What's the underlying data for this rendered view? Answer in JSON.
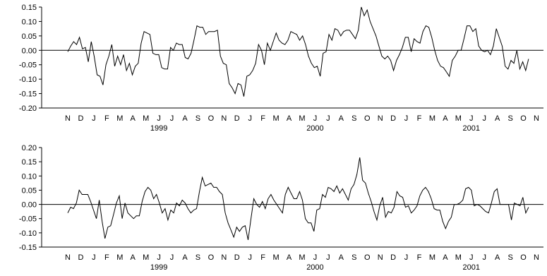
{
  "chart_data": [
    {
      "type": "line",
      "title": "",
      "xlabel": "",
      "ylabel": "",
      "ylim": [
        -0.2,
        0.15
      ],
      "yticks": [
        "0.15",
        "0.10",
        "0.05",
        "0.00",
        "-0.05",
        "-0.10",
        "-0.15",
        "-0.20"
      ],
      "ytick_values": [
        0.15,
        0.1,
        0.05,
        0.0,
        -0.05,
        -0.1,
        -0.15,
        -0.2
      ],
      "months": [
        "N",
        "D",
        "J",
        "F",
        "M",
        "A",
        "M",
        "J",
        "J",
        "A",
        "S",
        "O",
        "N",
        "D",
        "J",
        "F",
        "M",
        "A",
        "M",
        "J",
        "J",
        "A",
        "S",
        "O",
        "N",
        "D",
        "J",
        "F",
        "M",
        "A",
        "M",
        "J",
        "J",
        "A",
        "S",
        "O",
        "N"
      ],
      "years": [
        {
          "label": "1999",
          "month_index": 7
        },
        {
          "label": "2000",
          "month_index": 19
        },
        {
          "label": "2001",
          "month_index": 31
        }
      ],
      "grid": false,
      "zero_line": true,
      "series": [
        {
          "values": [
            -0.005,
            0.015,
            0.03,
            0.02,
            0.045,
            0.005,
            0.01,
            -0.04,
            0.03,
            -0.02,
            -0.085,
            -0.09,
            -0.12,
            -0.05,
            -0.02,
            0.02,
            -0.055,
            -0.02,
            -0.05,
            -0.015,
            -0.07,
            -0.045,
            -0.085,
            -0.055,
            -0.045,
            0.025,
            0.065,
            0.06,
            0.055,
            -0.01,
            -0.015,
            -0.015,
            -0.06,
            -0.065,
            -0.065,
            0.01,
            0.0,
            0.025,
            0.02,
            0.02,
            -0.025,
            -0.03,
            -0.01,
            0.035,
            0.085,
            0.08,
            0.08,
            0.055,
            0.065,
            0.065,
            0.065,
            0.07,
            -0.02,
            -0.045,
            -0.05,
            -0.115,
            -0.13,
            -0.15,
            -0.115,
            -0.12,
            -0.16,
            -0.09,
            -0.085,
            -0.07,
            -0.045,
            0.02,
            0.0,
            -0.05,
            0.025,
            0.0,
            0.03,
            0.06,
            0.035,
            0.025,
            0.02,
            0.035,
            0.065,
            0.06,
            0.055,
            0.035,
            0.05,
            0.02,
            -0.02,
            -0.045,
            -0.06,
            -0.055,
            -0.09,
            -0.01,
            -0.005,
            0.055,
            0.035,
            0.075,
            0.07,
            0.05,
            0.065,
            0.07,
            0.07,
            0.055,
            0.04,
            0.07,
            0.15,
            0.12,
            0.14,
            0.1,
            0.075,
            0.05,
            0.015,
            -0.02,
            -0.03,
            -0.02,
            -0.035,
            -0.07,
            -0.035,
            -0.015,
            0.01,
            0.045,
            0.045,
            -0.005,
            0.04,
            0.03,
            0.025,
            0.065,
            0.085,
            0.08,
            0.045,
            0.0,
            -0.035,
            -0.055,
            -0.06,
            -0.075,
            -0.09,
            -0.035,
            -0.02,
            0.0,
            0.0,
            0.04,
            0.085,
            0.085,
            0.065,
            0.075,
            0.015,
            0.0,
            -0.005,
            0.0,
            -0.015,
            0.015,
            0.075,
            0.045,
            0.015,
            -0.055,
            -0.065,
            -0.035,
            -0.045,
            0.0,
            -0.065,
            -0.04,
            -0.07,
            -0.03
          ]
        }
      ]
    },
    {
      "type": "line",
      "title": "",
      "xlabel": "",
      "ylabel": "",
      "ylim": [
        -0.15,
        0.2
      ],
      "yticks": [
        "0.20",
        "0.15",
        "0.10",
        "0.05",
        "0.00",
        "-0.05",
        "-0.10",
        "-0.15"
      ],
      "ytick_values": [
        0.2,
        0.15,
        0.1,
        0.05,
        0.0,
        -0.05,
        -0.1,
        -0.15
      ],
      "months": [
        "N",
        "D",
        "J",
        "F",
        "M",
        "A",
        "M",
        "J",
        "J",
        "A",
        "S",
        "O",
        "N",
        "D",
        "J",
        "F",
        "M",
        "A",
        "M",
        "J",
        "J",
        "A",
        "S",
        "O",
        "N",
        "D",
        "J",
        "F",
        "M",
        "A",
        "M",
        "J",
        "J",
        "A",
        "S",
        "O",
        "N"
      ],
      "years": [
        {
          "label": "1999",
          "month_index": 7
        },
        {
          "label": "2000",
          "month_index": 19
        },
        {
          "label": "2001",
          "month_index": 31
        }
      ],
      "grid": false,
      "zero_line": true,
      "series": [
        {
          "values": [
            -0.03,
            -0.01,
            -0.015,
            0.005,
            0.05,
            0.035,
            0.035,
            0.035,
            0.01,
            -0.02,
            -0.05,
            0.015,
            -0.06,
            -0.12,
            -0.08,
            -0.075,
            -0.035,
            0.005,
            0.03,
            -0.05,
            0.005,
            -0.03,
            -0.04,
            -0.05,
            -0.04,
            -0.04,
            0.01,
            0.045,
            0.06,
            0.05,
            0.02,
            0.035,
            0.005,
            -0.03,
            -0.015,
            -0.055,
            -0.02,
            -0.03,
            0.005,
            -0.005,
            0.015,
            0.005,
            -0.015,
            -0.03,
            -0.02,
            -0.015,
            0.045,
            0.095,
            0.065,
            0.07,
            0.075,
            0.06,
            0.06,
            0.045,
            0.035,
            -0.03,
            -0.065,
            -0.09,
            -0.115,
            -0.08,
            -0.095,
            -0.08,
            -0.075,
            -0.125,
            -0.05,
            0.02,
            0.0,
            -0.01,
            0.01,
            -0.015,
            0.02,
            0.035,
            0.015,
            0.0,
            -0.015,
            -0.03,
            0.035,
            0.06,
            0.04,
            0.02,
            0.02,
            0.045,
            0.015,
            -0.05,
            -0.065,
            -0.065,
            -0.095,
            -0.02,
            -0.015,
            0.035,
            0.025,
            0.06,
            0.055,
            0.045,
            0.065,
            0.04,
            0.055,
            0.035,
            0.015,
            0.055,
            0.07,
            0.105,
            0.165,
            0.085,
            0.075,
            0.04,
            0.01,
            -0.025,
            -0.055,
            -0.005,
            0.025,
            -0.045,
            -0.025,
            -0.03,
            -0.01,
            0.045,
            0.03,
            0.025,
            -0.01,
            -0.005,
            -0.03,
            -0.02,
            -0.005,
            0.03,
            0.05,
            0.06,
            0.045,
            0.02,
            -0.015,
            -0.02,
            -0.02,
            -0.06,
            -0.085,
            -0.06,
            -0.045,
            0.0,
            0.0,
            0.005,
            0.015,
            0.055,
            0.06,
            0.05,
            -0.005,
            0.0,
            -0.005,
            -0.015,
            -0.025,
            -0.03,
            0.005,
            0.045,
            0.055,
            0.0,
            0.0,
            0.0,
            0.0,
            -0.055,
            0.005,
            0.0,
            -0.005,
            0.025,
            -0.03,
            -0.01
          ]
        }
      ]
    }
  ]
}
